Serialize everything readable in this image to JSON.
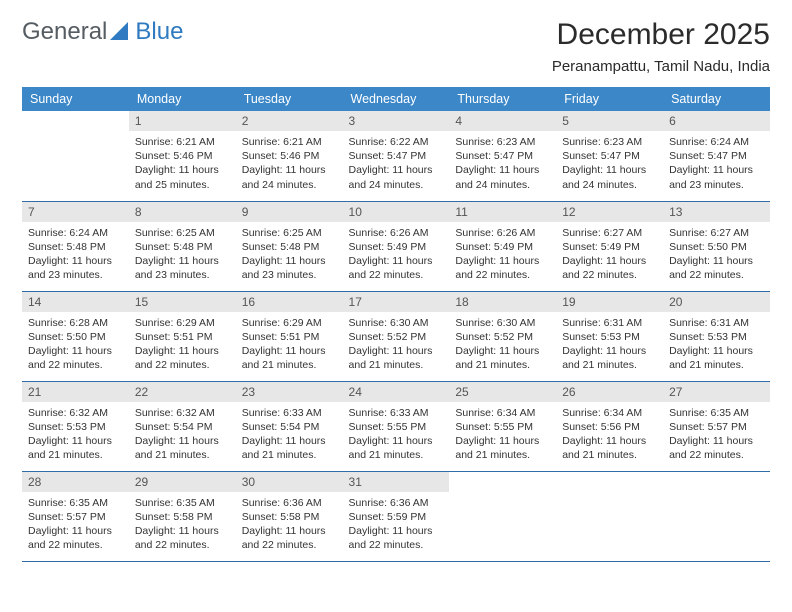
{
  "logo": {
    "text1": "General",
    "text2": "Blue"
  },
  "title": "December 2025",
  "location": "Peranampattu, Tamil Nadu, India",
  "colors": {
    "header_bg": "#3b87c8",
    "header_fg": "#ffffff",
    "daynum_bg": "#e7e7e7",
    "row_border": "#2f6da8",
    "logo_gray": "#555c62",
    "logo_blue": "#2f7ac0"
  },
  "weekdays": [
    "Sunday",
    "Monday",
    "Tuesday",
    "Wednesday",
    "Thursday",
    "Friday",
    "Saturday"
  ],
  "start_offset": 1,
  "days": [
    {
      "n": 1,
      "sr": "6:21 AM",
      "ss": "5:46 PM",
      "dl": "11 hours and 25 minutes."
    },
    {
      "n": 2,
      "sr": "6:21 AM",
      "ss": "5:46 PM",
      "dl": "11 hours and 24 minutes."
    },
    {
      "n": 3,
      "sr": "6:22 AM",
      "ss": "5:47 PM",
      "dl": "11 hours and 24 minutes."
    },
    {
      "n": 4,
      "sr": "6:23 AM",
      "ss": "5:47 PM",
      "dl": "11 hours and 24 minutes."
    },
    {
      "n": 5,
      "sr": "6:23 AM",
      "ss": "5:47 PM",
      "dl": "11 hours and 24 minutes."
    },
    {
      "n": 6,
      "sr": "6:24 AM",
      "ss": "5:47 PM",
      "dl": "11 hours and 23 minutes."
    },
    {
      "n": 7,
      "sr": "6:24 AM",
      "ss": "5:48 PM",
      "dl": "11 hours and 23 minutes."
    },
    {
      "n": 8,
      "sr": "6:25 AM",
      "ss": "5:48 PM",
      "dl": "11 hours and 23 minutes."
    },
    {
      "n": 9,
      "sr": "6:25 AM",
      "ss": "5:48 PM",
      "dl": "11 hours and 23 minutes."
    },
    {
      "n": 10,
      "sr": "6:26 AM",
      "ss": "5:49 PM",
      "dl": "11 hours and 22 minutes."
    },
    {
      "n": 11,
      "sr": "6:26 AM",
      "ss": "5:49 PM",
      "dl": "11 hours and 22 minutes."
    },
    {
      "n": 12,
      "sr": "6:27 AM",
      "ss": "5:49 PM",
      "dl": "11 hours and 22 minutes."
    },
    {
      "n": 13,
      "sr": "6:27 AM",
      "ss": "5:50 PM",
      "dl": "11 hours and 22 minutes."
    },
    {
      "n": 14,
      "sr": "6:28 AM",
      "ss": "5:50 PM",
      "dl": "11 hours and 22 minutes."
    },
    {
      "n": 15,
      "sr": "6:29 AM",
      "ss": "5:51 PM",
      "dl": "11 hours and 22 minutes."
    },
    {
      "n": 16,
      "sr": "6:29 AM",
      "ss": "5:51 PM",
      "dl": "11 hours and 21 minutes."
    },
    {
      "n": 17,
      "sr": "6:30 AM",
      "ss": "5:52 PM",
      "dl": "11 hours and 21 minutes."
    },
    {
      "n": 18,
      "sr": "6:30 AM",
      "ss": "5:52 PM",
      "dl": "11 hours and 21 minutes."
    },
    {
      "n": 19,
      "sr": "6:31 AM",
      "ss": "5:53 PM",
      "dl": "11 hours and 21 minutes."
    },
    {
      "n": 20,
      "sr": "6:31 AM",
      "ss": "5:53 PM",
      "dl": "11 hours and 21 minutes."
    },
    {
      "n": 21,
      "sr": "6:32 AM",
      "ss": "5:53 PM",
      "dl": "11 hours and 21 minutes."
    },
    {
      "n": 22,
      "sr": "6:32 AM",
      "ss": "5:54 PM",
      "dl": "11 hours and 21 minutes."
    },
    {
      "n": 23,
      "sr": "6:33 AM",
      "ss": "5:54 PM",
      "dl": "11 hours and 21 minutes."
    },
    {
      "n": 24,
      "sr": "6:33 AM",
      "ss": "5:55 PM",
      "dl": "11 hours and 21 minutes."
    },
    {
      "n": 25,
      "sr": "6:34 AM",
      "ss": "5:55 PM",
      "dl": "11 hours and 21 minutes."
    },
    {
      "n": 26,
      "sr": "6:34 AM",
      "ss": "5:56 PM",
      "dl": "11 hours and 21 minutes."
    },
    {
      "n": 27,
      "sr": "6:35 AM",
      "ss": "5:57 PM",
      "dl": "11 hours and 22 minutes."
    },
    {
      "n": 28,
      "sr": "6:35 AM",
      "ss": "5:57 PM",
      "dl": "11 hours and 22 minutes."
    },
    {
      "n": 29,
      "sr": "6:35 AM",
      "ss": "5:58 PM",
      "dl": "11 hours and 22 minutes."
    },
    {
      "n": 30,
      "sr": "6:36 AM",
      "ss": "5:58 PM",
      "dl": "11 hours and 22 minutes."
    },
    {
      "n": 31,
      "sr": "6:36 AM",
      "ss": "5:59 PM",
      "dl": "11 hours and 22 minutes."
    }
  ],
  "labels": {
    "sunrise": "Sunrise:",
    "sunset": "Sunset:",
    "daylight": "Daylight:"
  }
}
